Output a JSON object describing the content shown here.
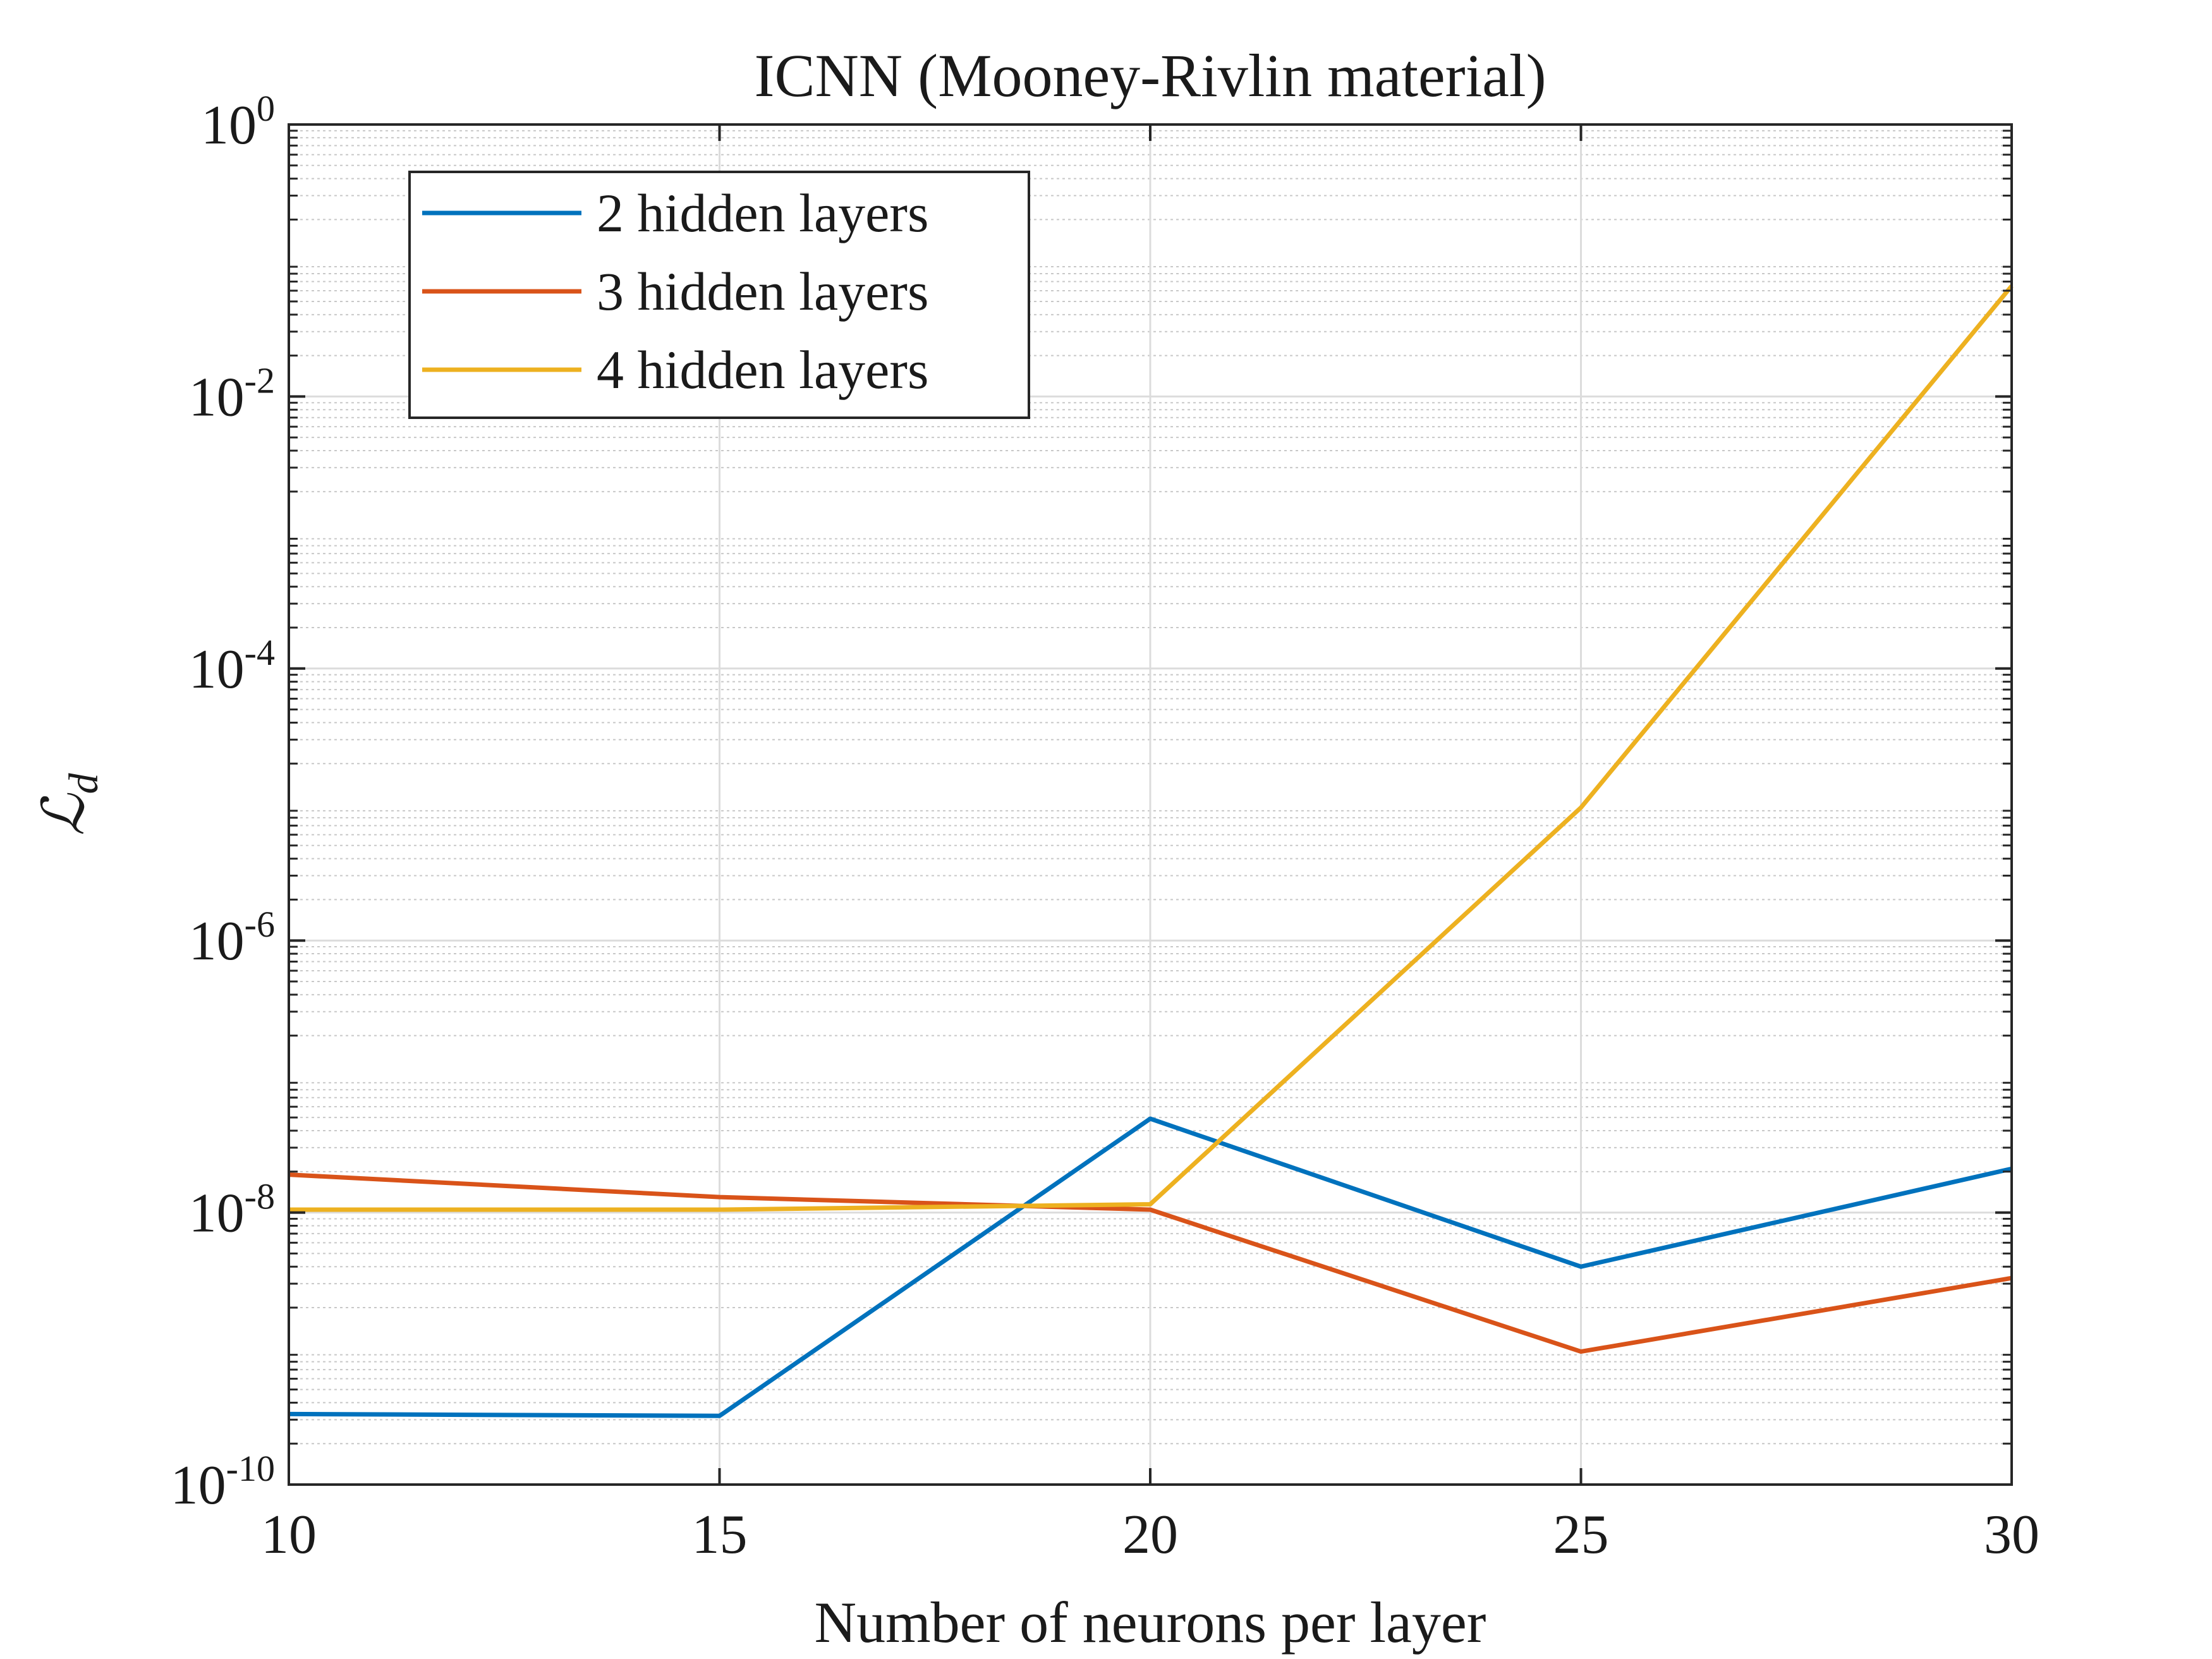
{
  "chart_data": {
    "type": "line",
    "title": "ICNN (Mooney-Rivlin material)",
    "xlabel": "Number of neurons per layer",
    "ylabel_main": "ℒ",
    "ylabel_sub": "d",
    "x": [
      10,
      15,
      20,
      25,
      30
    ],
    "xticks": [
      "10",
      "15",
      "20",
      "25",
      "30"
    ],
    "xlim": [
      10,
      30
    ],
    "yscale": "log",
    "ylim": [
      1e-10,
      1
    ],
    "yticks": [
      {
        "base": "10",
        "exp": "-10",
        "value": 1e-10
      },
      {
        "base": "10",
        "exp": "-8",
        "value": 1e-08
      },
      {
        "base": "10",
        "exp": "-6",
        "value": 1e-06
      },
      {
        "base": "10",
        "exp": "-4",
        "value": 0.0001
      },
      {
        "base": "10",
        "exp": "-2",
        "value": 0.01
      },
      {
        "base": "10",
        "exp": "0",
        "value": 1
      }
    ],
    "grid": true,
    "legend_position": "top-left",
    "series": [
      {
        "name": "2 hidden layers",
        "color": "#0072BD",
        "values": [
          3.3e-10,
          3.2e-10,
          4.9e-08,
          4e-09,
          2.1e-08
        ]
      },
      {
        "name": "3 hidden layers",
        "color": "#D95319",
        "values": [
          1.9e-08,
          1.3e-08,
          1.05e-08,
          9.5e-10,
          3.3e-09
        ]
      },
      {
        "name": "4 hidden layers",
        "color": "#EDB120",
        "values": [
          1.05e-08,
          1.05e-08,
          1.15e-08,
          9.5e-06,
          0.065
        ]
      }
    ]
  }
}
